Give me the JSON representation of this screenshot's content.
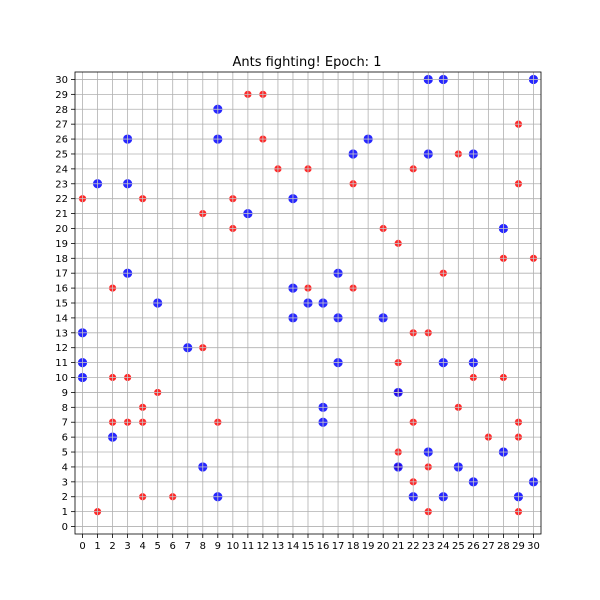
{
  "chart_data": {
    "type": "scatter",
    "title": "Ants fighting! Epoch: 1",
    "xlabel": "",
    "ylabel": "",
    "xlim": [
      -0.5,
      30.5
    ],
    "ylim": [
      -0.5,
      30.5
    ],
    "grid": true,
    "x_ticks": [
      0,
      1,
      2,
      3,
      4,
      5,
      6,
      7,
      8,
      9,
      10,
      11,
      12,
      13,
      14,
      15,
      16,
      17,
      18,
      19,
      20,
      21,
      22,
      23,
      24,
      25,
      26,
      27,
      28,
      29,
      30
    ],
    "y_ticks": [
      0,
      1,
      2,
      3,
      4,
      5,
      6,
      7,
      8,
      9,
      10,
      11,
      12,
      13,
      14,
      15,
      16,
      17,
      18,
      19,
      20,
      21,
      22,
      23,
      24,
      25,
      26,
      27,
      28,
      29,
      30
    ],
    "series": [
      {
        "color": "#ff0000",
        "marker_size": "small",
        "points": [
          [
            0,
            22
          ],
          [
            1,
            1
          ],
          [
            2,
            16
          ],
          [
            2,
            10
          ],
          [
            2,
            7
          ],
          [
            3,
            10
          ],
          [
            3,
            7
          ],
          [
            4,
            22
          ],
          [
            4,
            8
          ],
          [
            4,
            7
          ],
          [
            4,
            2
          ],
          [
            5,
            9
          ],
          [
            6,
            2
          ],
          [
            8,
            21
          ],
          [
            8,
            12
          ],
          [
            9,
            7
          ],
          [
            10,
            22
          ],
          [
            10,
            20
          ],
          [
            11,
            29
          ],
          [
            12,
            29
          ],
          [
            12,
            26
          ],
          [
            13,
            24
          ],
          [
            15,
            24
          ],
          [
            15,
            16
          ],
          [
            18,
            23
          ],
          [
            18,
            16
          ],
          [
            20,
            20
          ],
          [
            21,
            19
          ],
          [
            21,
            11
          ],
          [
            21,
            9
          ],
          [
            21,
            5
          ],
          [
            21,
            4
          ],
          [
            22,
            24
          ],
          [
            22,
            13
          ],
          [
            22,
            7
          ],
          [
            22,
            3
          ],
          [
            23,
            13
          ],
          [
            23,
            4
          ],
          [
            23,
            1
          ],
          [
            24,
            17
          ],
          [
            25,
            25
          ],
          [
            25,
            8
          ],
          [
            26,
            10
          ],
          [
            27,
            6
          ],
          [
            28,
            18
          ],
          [
            28,
            10
          ],
          [
            29,
            27
          ],
          [
            29,
            23
          ],
          [
            29,
            7
          ],
          [
            29,
            6
          ],
          [
            29,
            1
          ],
          [
            30,
            18
          ]
        ]
      },
      {
        "color": "#0000ff",
        "marker_size": "large",
        "points": [
          [
            0,
            13
          ],
          [
            0,
            11
          ],
          [
            0,
            10
          ],
          [
            1,
            23
          ],
          [
            2,
            6
          ],
          [
            3,
            26
          ],
          [
            3,
            23
          ],
          [
            3,
            17
          ],
          [
            5,
            15
          ],
          [
            7,
            12
          ],
          [
            8,
            4
          ],
          [
            9,
            28
          ],
          [
            9,
            26
          ],
          [
            9,
            2
          ],
          [
            11,
            21
          ],
          [
            14,
            22
          ],
          [
            14,
            16
          ],
          [
            14,
            14
          ],
          [
            15,
            15
          ],
          [
            16,
            15
          ],
          [
            16,
            8
          ],
          [
            16,
            7
          ],
          [
            17,
            17
          ],
          [
            17,
            14
          ],
          [
            17,
            11
          ],
          [
            18,
            25
          ],
          [
            19,
            26
          ],
          [
            20,
            14
          ],
          [
            21,
            9
          ],
          [
            21,
            4
          ],
          [
            22,
            2
          ],
          [
            23,
            30
          ],
          [
            23,
            25
          ],
          [
            23,
            5
          ],
          [
            24,
            30
          ],
          [
            24,
            11
          ],
          [
            24,
            2
          ],
          [
            25,
            4
          ],
          [
            26,
            25
          ],
          [
            26,
            11
          ],
          [
            26,
            3
          ],
          [
            28,
            20
          ],
          [
            28,
            5
          ],
          [
            29,
            2
          ],
          [
            30,
            30
          ],
          [
            30,
            3
          ]
        ]
      }
    ]
  }
}
